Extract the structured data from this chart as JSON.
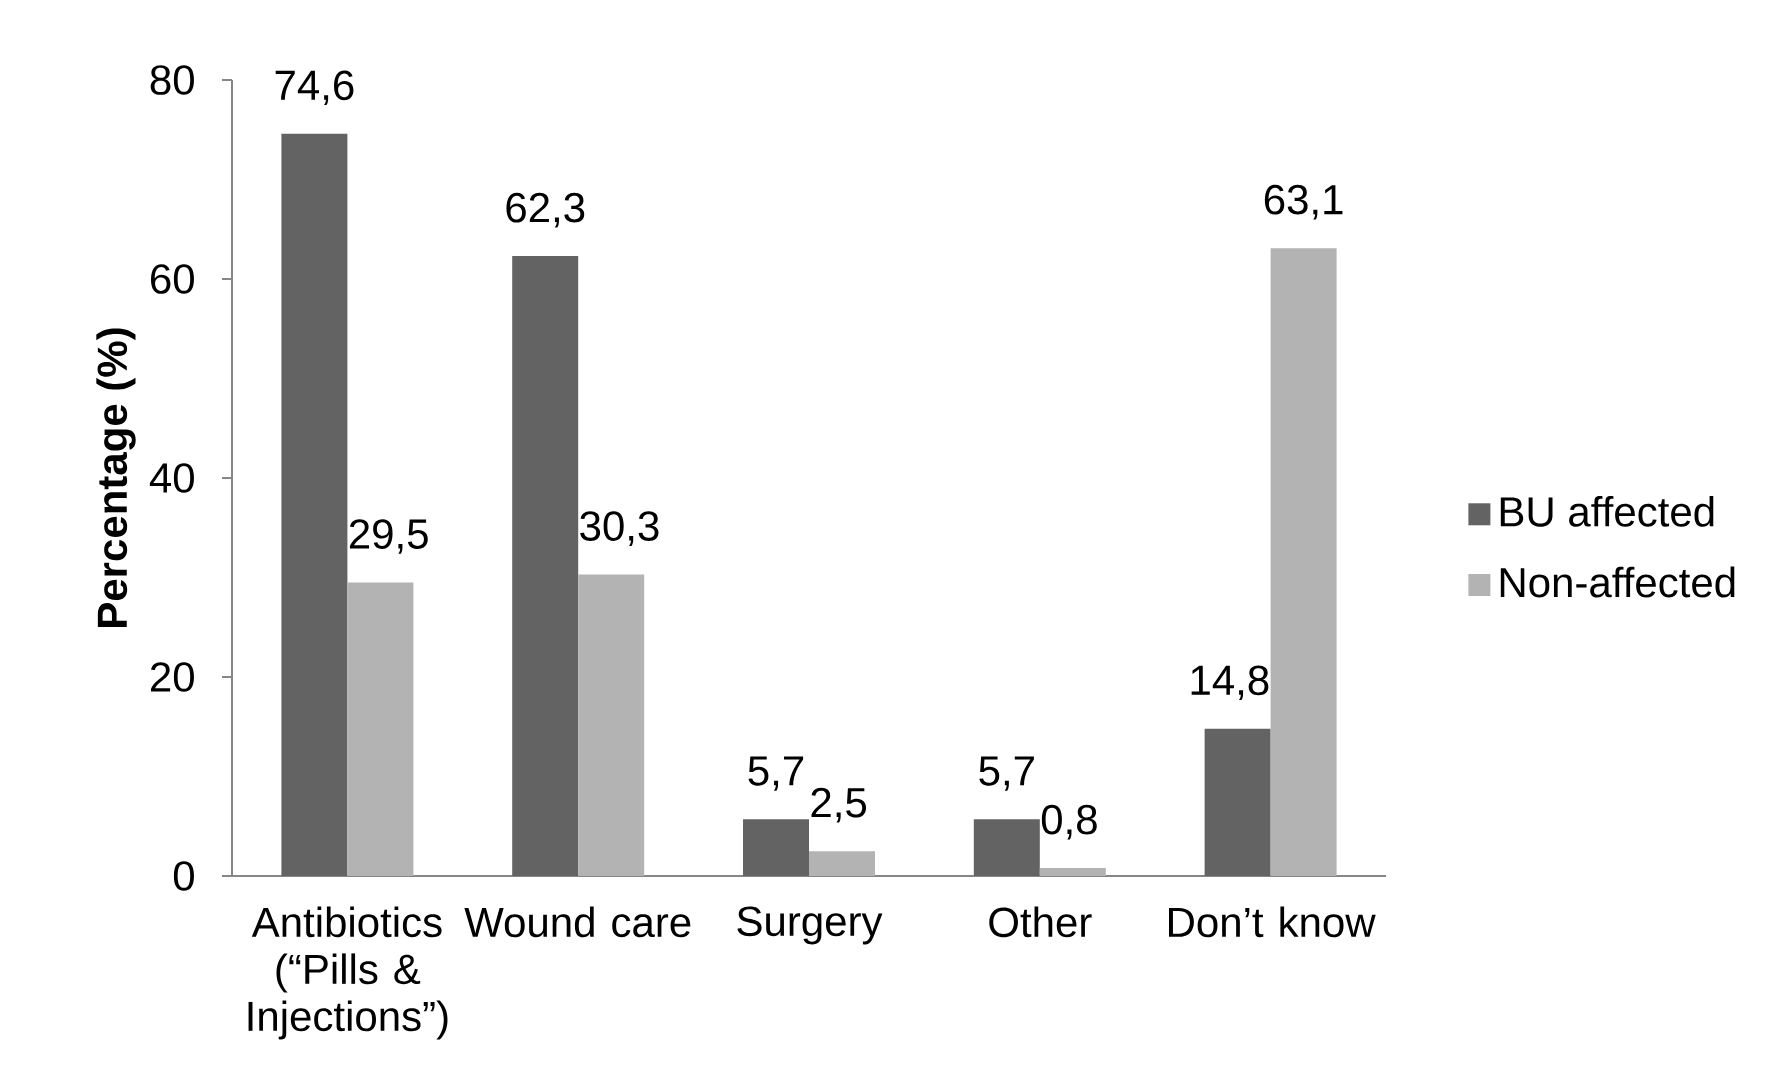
{
  "chart_data": {
    "type": "bar",
    "ylabel": "Percentage (%)",
    "categories": [
      "Antibiotics (“Pills & Injections”)",
      "Wound care",
      "Surgery",
      "Other",
      "Don’t know"
    ],
    "series": [
      {
        "name": "BU affected",
        "color": "#636363",
        "values": [
          74.6,
          62.3,
          5.7,
          5.7,
          14.8
        ],
        "value_labels": [
          "74,6",
          "62,3",
          "5,7",
          "5,7",
          "14,8"
        ]
      },
      {
        "name": "Non-affected",
        "color": "#b3b3b3",
        "values": [
          29.5,
          30.3,
          2.5,
          0.8,
          63.1
        ],
        "value_labels": [
          "29,5",
          "30,3",
          "2,5",
          "0,8",
          "63,1"
        ]
      }
    ],
    "ylim": [
      0,
      80
    ],
    "yticks": [
      0,
      20,
      40,
      60,
      80
    ],
    "legend": "right"
  }
}
